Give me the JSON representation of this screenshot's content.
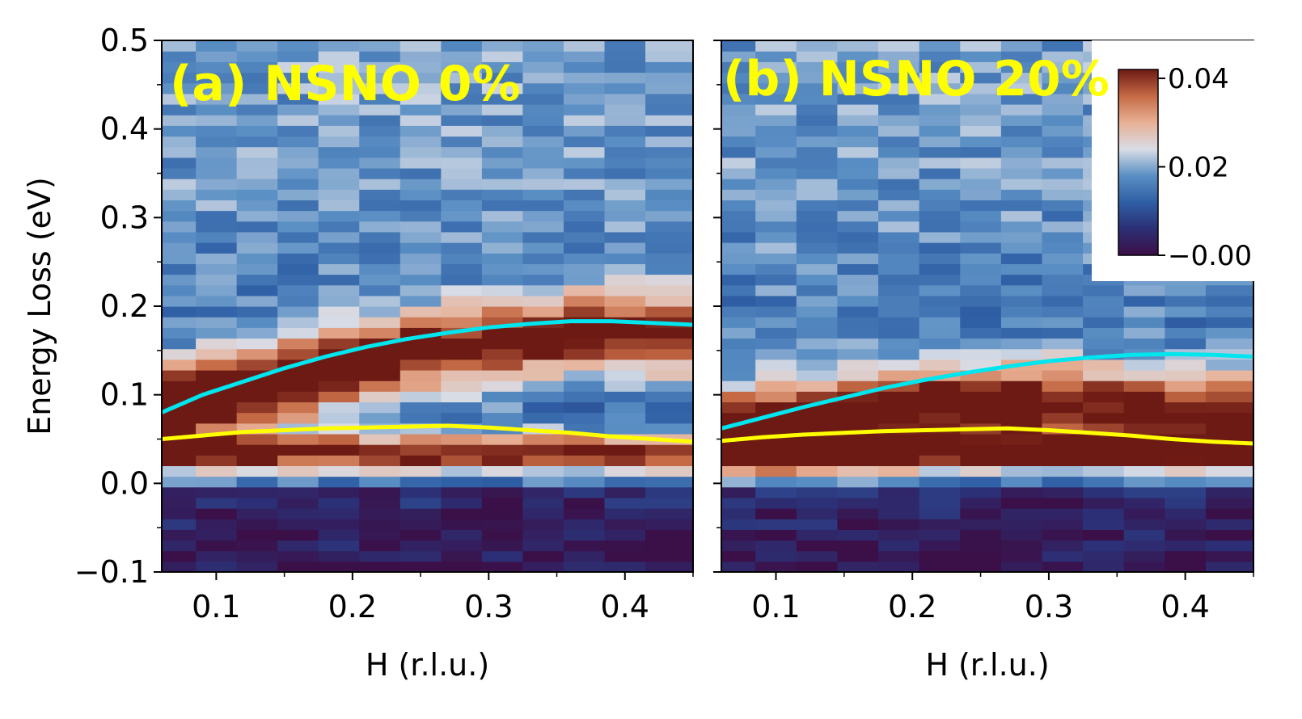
{
  "chart_data": [
    {
      "type": "heatmap",
      "title": "(a) NSNO 0%",
      "xlabel": "H (r.l.u.)",
      "ylabel": "Energy Loss (eV)",
      "xlim": [
        0.06,
        0.45
      ],
      "ylim": [
        -0.1,
        0.5
      ],
      "xticks": [
        "0.1",
        "0.2",
        "0.3",
        "0.4"
      ],
      "yticks": [
        "−0.1",
        "0.0",
        "0.1",
        "0.2",
        "0.3",
        "0.4",
        "0.5"
      ],
      "x": [
        0.07,
        0.1,
        0.13,
        0.16,
        0.19,
        0.22,
        0.25,
        0.28,
        0.31,
        0.34,
        0.37,
        0.4,
        0.43
      ],
      "elastic_center": 0.035,
      "mode_peak_center": [
        0.09,
        0.1,
        0.11,
        0.12,
        0.13,
        0.14,
        0.15,
        0.155,
        0.16,
        0.165,
        0.17,
        0.17,
        0.17
      ],
      "mode_peak_intensity": [
        0.037,
        0.037,
        0.036,
        0.035,
        0.033,
        0.032,
        0.031,
        0.03,
        0.03,
        0.029,
        0.028,
        0.027,
        0.026
      ],
      "series": [
        {
          "type": "line",
          "color": "#00e5ee",
          "x": [
            0.06,
            0.09,
            0.12,
            0.15,
            0.18,
            0.21,
            0.24,
            0.27,
            0.3,
            0.33,
            0.36,
            0.39,
            0.42,
            0.45
          ],
          "y": [
            0.08,
            0.1,
            0.115,
            0.13,
            0.143,
            0.154,
            0.163,
            0.17,
            0.176,
            0.18,
            0.183,
            0.183,
            0.181,
            0.179
          ]
        },
        {
          "type": "line",
          "color": "#ffff00",
          "x": [
            0.06,
            0.09,
            0.12,
            0.15,
            0.18,
            0.21,
            0.24,
            0.27,
            0.3,
            0.33,
            0.36,
            0.39,
            0.42,
            0.45
          ],
          "y": [
            0.05,
            0.054,
            0.058,
            0.06,
            0.062,
            0.063,
            0.064,
            0.065,
            0.063,
            0.06,
            0.057,
            0.053,
            0.05,
            0.047
          ]
        }
      ]
    },
    {
      "type": "heatmap",
      "title": "(b) NSNO 20%",
      "xlabel": "H (r.l.u.)",
      "ylabel": "",
      "xlim": [
        0.06,
        0.45
      ],
      "ylim": [
        -0.1,
        0.5
      ],
      "xticks": [
        "0.1",
        "0.2",
        "0.3",
        "0.4"
      ],
      "x": [
        0.07,
        0.1,
        0.13,
        0.16,
        0.19,
        0.22,
        0.25,
        0.28,
        0.31,
        0.34,
        0.37,
        0.4,
        0.43
      ],
      "elastic_center": 0.035,
      "mode_peak_center": [
        0.065,
        0.07,
        0.075,
        0.08,
        0.085,
        0.09,
        0.09,
        0.09,
        0.09,
        0.085,
        0.085,
        0.08,
        0.08
      ],
      "mode_peak_intensity": [
        0.034,
        0.034,
        0.033,
        0.033,
        0.033,
        0.032,
        0.032,
        0.032,
        0.031,
        0.03,
        0.03,
        0.029,
        0.029
      ],
      "series": [
        {
          "type": "line",
          "color": "#00e5ee",
          "x": [
            0.06,
            0.09,
            0.12,
            0.15,
            0.18,
            0.21,
            0.24,
            0.27,
            0.3,
            0.33,
            0.36,
            0.39,
            0.42,
            0.45
          ],
          "y": [
            0.062,
            0.074,
            0.086,
            0.097,
            0.108,
            0.117,
            0.125,
            0.132,
            0.138,
            0.142,
            0.145,
            0.146,
            0.145,
            0.143
          ]
        },
        {
          "type": "line",
          "color": "#ffff00",
          "x": [
            0.06,
            0.09,
            0.12,
            0.15,
            0.18,
            0.21,
            0.24,
            0.27,
            0.3,
            0.33,
            0.36,
            0.39,
            0.42,
            0.45
          ],
          "y": [
            0.048,
            0.052,
            0.055,
            0.057,
            0.059,
            0.06,
            0.061,
            0.062,
            0.06,
            0.057,
            0.054,
            0.05,
            0.047,
            0.045
          ]
        }
      ]
    }
  ],
  "colorbar": {
    "ticks": [
      "0.04",
      "0.02",
      "−0.00"
    ],
    "range": [
      0.0,
      0.042
    ],
    "colors": [
      "#3b0f47",
      "#2c2f75",
      "#2f5fa5",
      "#5a8fc4",
      "#d8dce6",
      "#e8b095",
      "#c56a45",
      "#6e1a14"
    ]
  },
  "panel_label_color": "#ffff00"
}
